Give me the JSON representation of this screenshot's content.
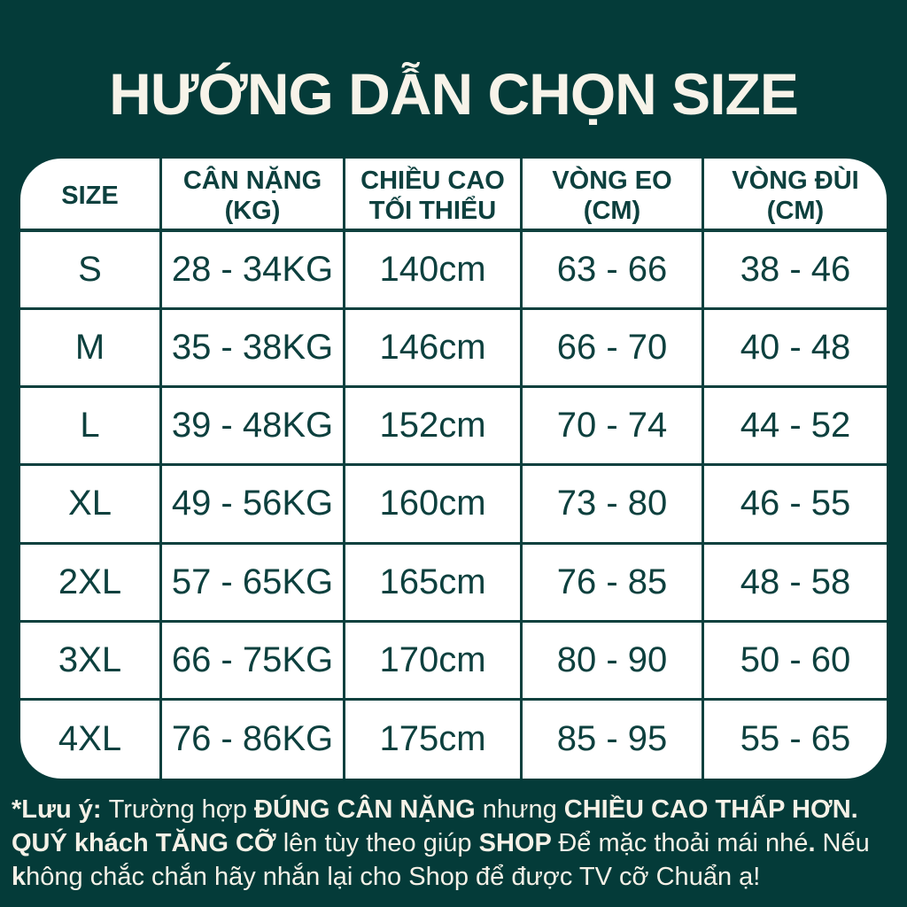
{
  "title": "HƯỚNG DẪN CHỌN SIZE",
  "table": {
    "headers": [
      {
        "line1": "SIZE",
        "line2": ""
      },
      {
        "line1": "CÂN NẶNG",
        "line2": "(KG)"
      },
      {
        "line1": "CHIỀU CAO",
        "line2": "TỐI THIỂU"
      },
      {
        "line1": "VÒNG EO",
        "line2": "(CM)"
      },
      {
        "line1": "VÒNG ĐÙI",
        "line2": "(CM)"
      }
    ],
    "rows": [
      [
        "S",
        "28 - 34KG",
        "140cm",
        "63 - 66",
        "38 - 46"
      ],
      [
        "M",
        "35 - 38KG",
        "146cm",
        "66 - 70",
        "40 - 48"
      ],
      [
        "L",
        "39 - 48KG",
        "152cm",
        "70 - 74",
        "44 - 52"
      ],
      [
        "XL",
        "49 - 56KG",
        "160cm",
        "73 - 80",
        "46 - 55"
      ],
      [
        "2XL",
        "57 - 65KG",
        "165cm",
        "76 - 85",
        "48 - 58"
      ],
      [
        "3XL",
        "66 - 75KG",
        "170cm",
        "80 - 90",
        "50 - 60"
      ],
      [
        "4XL",
        "76 - 86KG",
        "175cm",
        "85 - 95",
        "55 - 65"
      ]
    ]
  },
  "note": {
    "lines": [
      {
        "segments": [
          {
            "text": "*Lưu ý: ",
            "bold": true
          },
          {
            "text": "Trường hợp ",
            "bold": false
          },
          {
            "text": "ĐÚNG CÂN NẶNG ",
            "bold": true
          },
          {
            "text": "nhưng ",
            "bold": false
          },
          {
            "text": "CHIỀU CAO THẤP HƠN.",
            "bold": true
          }
        ]
      },
      {
        "segments": [
          {
            "text": "QUÝ khách TĂNG CỠ ",
            "bold": true
          },
          {
            "text": "lên tùy theo giúp ",
            "bold": false
          },
          {
            "text": "SHOP ",
            "bold": true
          },
          {
            "text": "Để mặc thoải mái nhé",
            "bold": false
          },
          {
            "text": ".",
            "bold": true
          },
          {
            "text": " Nếu",
            "bold": false
          }
        ]
      },
      {
        "segments": [
          {
            "text": "k",
            "bold": true
          },
          {
            "text": "hông chắc chắn hãy nhắn lại cho Shop để được TV cỡ Chuẩn ạ!",
            "bold": false
          }
        ]
      }
    ]
  },
  "colors": {
    "background": "#043B39",
    "table_bg": "#FFFFFF",
    "table_text": "#0D403E",
    "line_color": "#0D403E",
    "title_text": "#F7F3E9",
    "note_text": "#F5F1E7"
  }
}
